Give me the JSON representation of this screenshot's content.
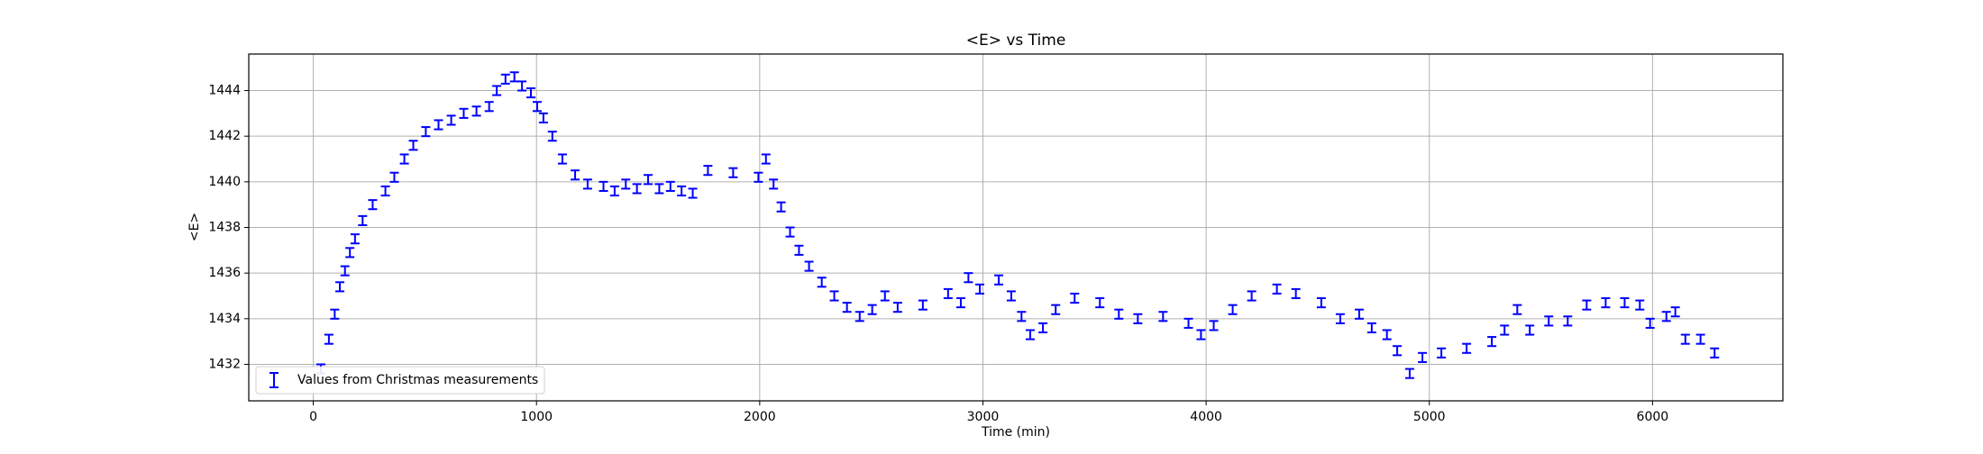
{
  "chart_data": {
    "type": "errorbar",
    "title": "<E> vs Time",
    "x_label": "Time (min)",
    "y_label": "<E>",
    "xlim": [
      -289,
      6584
    ],
    "ylim": [
      1430.4,
      1445.6
    ],
    "xticks": [
      0,
      1000,
      2000,
      3000,
      4000,
      5000,
      6000
    ],
    "yticks": [
      1432,
      1434,
      1436,
      1438,
      1440,
      1442,
      1444
    ],
    "grid": true,
    "legend": "lower left",
    "series": [
      {
        "name": "Values from Christmas measurements",
        "color": "#0000ff",
        "error": 0.2,
        "x": [
          34,
          70,
          96,
          119,
          142,
          164,
          187,
          221,
          266,
          323,
          363,
          408,
          448,
          504,
          561,
          618,
          674,
          731,
          788,
          822,
          861,
          901,
          935,
          975,
          1003,
          1031,
          1071,
          1116,
          1173,
          1229,
          1300,
          1350,
          1400,
          1450,
          1500,
          1550,
          1600,
          1650,
          1700,
          1768,
          1881,
          1994,
          2028,
          2062,
          2096,
          2136,
          2176,
          2221,
          2278,
          2334,
          2391,
          2448,
          2504,
          2561,
          2618,
          2731,
          2844,
          2901,
          2935,
          2986,
          3071,
          3127,
          3173,
          3212,
          3269,
          3326,
          3411,
          3524,
          3609,
          3694,
          3807,
          3921,
          3977,
          4034,
          4119,
          4204,
          4317,
          4402,
          4516,
          4601,
          4686,
          4742,
          4810,
          4856,
          4912,
          4969,
          5054,
          5167,
          5280,
          5337,
          5394,
          5450,
          5535,
          5620,
          5705,
          5790,
          5875,
          5943,
          5989,
          6062,
          6102,
          6147,
          6215,
          6278
        ],
        "values": [
          1431.8,
          1433.1,
          1434.2,
          1435.4,
          1436.1,
          1436.9,
          1437.5,
          1438.3,
          1439.0,
          1439.6,
          1440.2,
          1441.0,
          1441.6,
          1442.2,
          1442.5,
          1442.7,
          1443.0,
          1443.1,
          1443.3,
          1444.0,
          1444.5,
          1444.6,
          1444.2,
          1443.9,
          1443.3,
          1442.8,
          1442.0,
          1441.0,
          1440.3,
          1439.9,
          1439.8,
          1439.6,
          1439.9,
          1439.7,
          1440.1,
          1439.7,
          1439.8,
          1439.6,
          1439.5,
          1440.5,
          1440.4,
          1440.2,
          1441.0,
          1439.9,
          1438.9,
          1437.8,
          1437.0,
          1436.3,
          1435.6,
          1435.0,
          1434.5,
          1434.1,
          1434.4,
          1435.0,
          1434.5,
          1434.6,
          1435.1,
          1434.7,
          1435.8,
          1435.3,
          1435.7,
          1435.0,
          1434.1,
          1433.3,
          1433.6,
          1434.4,
          1434.9,
          1434.7,
          1434.2,
          1434.0,
          1434.1,
          1433.8,
          1433.3,
          1433.7,
          1434.4,
          1435.0,
          1435.3,
          1435.1,
          1434.7,
          1434.0,
          1434.2,
          1433.6,
          1433.3,
          1432.6,
          1431.6,
          1432.3,
          1432.5,
          1432.7,
          1433.0,
          1433.5,
          1434.4,
          1433.5,
          1433.9,
          1433.9,
          1434.6,
          1434.7,
          1434.7,
          1434.6,
          1433.8,
          1434.1,
          1434.3,
          1433.1,
          1433.1,
          1432.5
        ]
      }
    ]
  }
}
